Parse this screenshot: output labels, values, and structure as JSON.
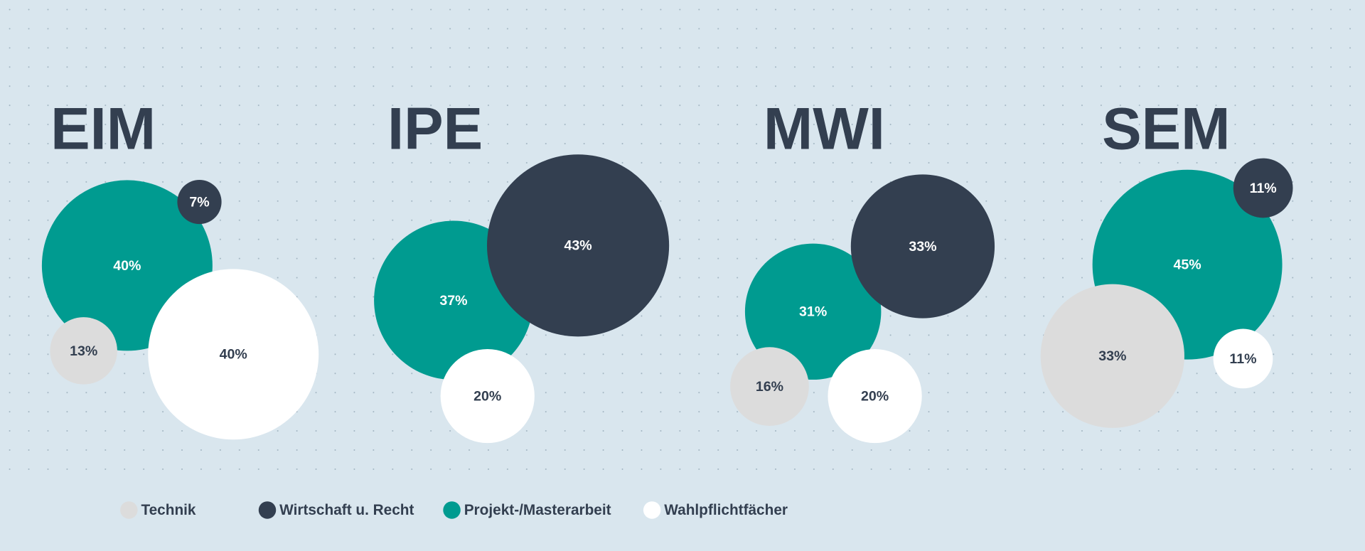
{
  "chart_data": {
    "type": "bubble",
    "categories": [
      "EIM",
      "IPE",
      "MWI",
      "SEM"
    ],
    "series": [
      {
        "name": "Technik",
        "color": "#dcdcdc",
        "values": [
          13,
          null,
          16,
          33
        ],
        "value_labels": [
          "13%",
          null,
          "16%",
          "33%"
        ]
      },
      {
        "name": "Wirtschaft u. Recht",
        "color": "#333f50",
        "values": [
          7,
          43,
          33,
          11
        ],
        "value_labels": [
          "7%",
          "43%",
          "33%",
          "11%"
        ]
      },
      {
        "name": "Projekt-/Masterarbeit",
        "color": "#009b90",
        "values": [
          40,
          37,
          31,
          45
        ],
        "value_labels": [
          "40%",
          "37%",
          "31%",
          "45%"
        ]
      },
      {
        "name": "Wahlpflichtfächer",
        "color": "#ffffff",
        "values": [
          40,
          20,
          20,
          11
        ],
        "value_labels": [
          "40%",
          "20%",
          "20%",
          "11%"
        ]
      }
    ]
  }
}
